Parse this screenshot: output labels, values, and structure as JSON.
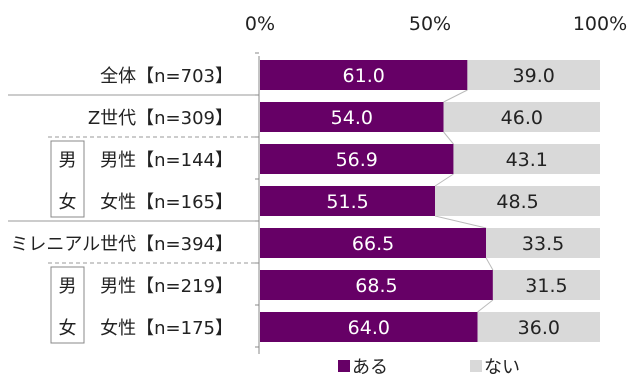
{
  "chart_data": {
    "type": "bar",
    "orientation": "horizontal",
    "stacked": true,
    "percent_scale": true,
    "xlim": [
      0,
      100
    ],
    "xticks": [
      "0%",
      "50%",
      "100%"
    ],
    "categories": [
      "全体【n=703】",
      "Z世代【n=309】",
      "男性【n=144】",
      "女性【n=165】",
      "ミレニアル世代【n=394】",
      "男性【n=219】",
      "女性【n=175】"
    ],
    "group_labels": [
      {
        "chars": [
          "男",
          "女"
        ],
        "rows": [
          2,
          3
        ]
      },
      {
        "chars": [
          "男",
          "女"
        ],
        "rows": [
          5,
          6
        ]
      }
    ],
    "series": [
      {
        "name": "ある",
        "color": "#660066",
        "values": [
          61.0,
          54.0,
          56.9,
          51.5,
          66.5,
          68.5,
          64.0
        ],
        "labels": [
          "61.0",
          "54.0",
          "56.9",
          "51.5",
          "66.5",
          "68.5",
          "64.0"
        ]
      },
      {
        "name": "ない",
        "color": "#d9d9d9",
        "values": [
          39.0,
          46.0,
          43.1,
          48.5,
          33.5,
          31.5,
          36.0
        ],
        "labels": [
          "39.0",
          "46.0",
          "43.1",
          "48.5",
          "33.5",
          "31.5",
          "36.0"
        ]
      }
    ],
    "legend": {
      "position": "bottom"
    },
    "grid": false
  }
}
